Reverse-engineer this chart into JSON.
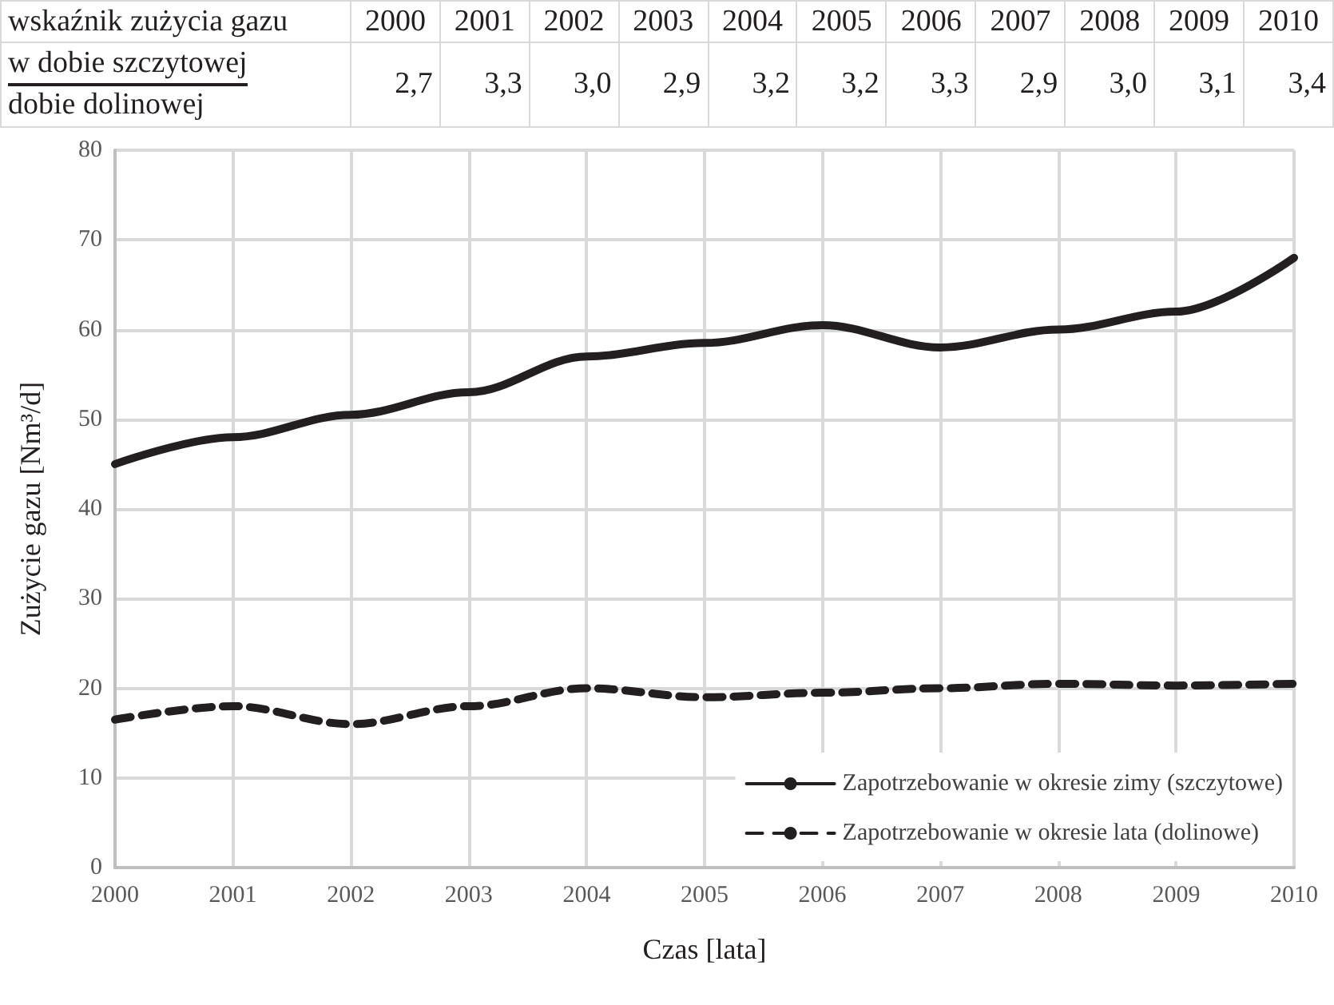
{
  "chart_data": {
    "type": "line",
    "categories": [
      "2000",
      "2001",
      "2002",
      "2003",
      "2004",
      "2005",
      "2006",
      "2007",
      "2008",
      "2009",
      "2010"
    ],
    "series": [
      {
        "name": "Zapotrzebowanie w okresie zimy (szczytowe)",
        "color": "#231f20",
        "line_style": "solid",
        "values": [
          45,
          48,
          50.5,
          53,
          57,
          58.5,
          60.5,
          58,
          60,
          62,
          68
        ]
      },
      {
        "name": "Zapotrzebowanie w okresie lata (dolinowe)",
        "color": "#231f20",
        "line_style": "dashed",
        "values": [
          16.5,
          18,
          16,
          18,
          20,
          19,
          19.5,
          20,
          20.5,
          20.3,
          20.5
        ]
      }
    ],
    "xlabel": "Czas [lata]",
    "ylabel": "Zużycie gazu [Nm³/d]",
    "ylim": [
      0,
      80
    ],
    "yticks": [
      0,
      10,
      20,
      30,
      40,
      50,
      60,
      70,
      80
    ],
    "grid": true,
    "legend": "bottom right",
    "marker": "none",
    "annotations": [
      "wskaźnik zużycia gazu",
      "w dobie szczytowej",
      "dobie dolinowej",
      "2,7",
      "3,3",
      "3,0",
      "2,9",
      "3,2",
      "3,2",
      "3,3",
      "2,9",
      "3,0",
      "3,1",
      "3,4"
    ]
  }
}
